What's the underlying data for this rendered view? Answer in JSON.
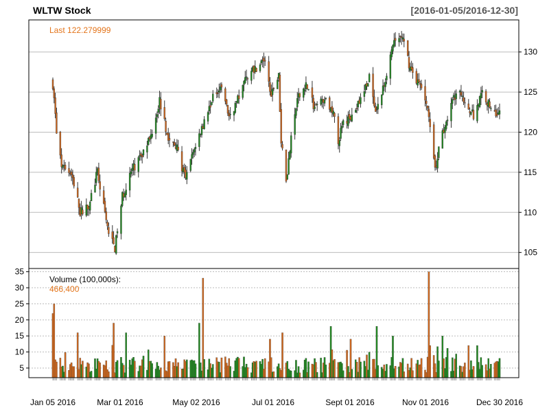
{
  "title": "WLTW Stock",
  "date_range": "[2016-01-05/2016-12-30]",
  "colors": {
    "up": "#228B22",
    "down": "#D2691E",
    "accent": "#E3741A",
    "grid": "#BBBBBB",
    "frame": "#000000"
  },
  "chart_data": [
    {
      "type": "candlestick",
      "title": "WLTW Stock",
      "annotation_label": "Last",
      "last_value": "122.279999",
      "ylim": [
        103,
        134
      ],
      "yticks": [
        105,
        110,
        115,
        120,
        125,
        130
      ],
      "ytick_labels": [
        "105",
        "110",
        "115",
        "120",
        "125",
        "130"
      ],
      "grid": true,
      "x_range": [
        "2016-01-05",
        "2016-12-30"
      ],
      "xtick_labels": [
        "Jan 05 2016",
        "Mar 01 2016",
        "May 02 2016",
        "Jul 01 2016",
        "Sept 01 2016",
        "Nov 01 2016",
        "Dec 30 2016"
      ],
      "close_path": [
        [
          "2016-01-05",
          126
        ],
        [
          "2016-01-08",
          120
        ],
        [
          "2016-01-12",
          115.5
        ],
        [
          "2016-01-20",
          115
        ],
        [
          "2016-01-27",
          110
        ],
        [
          "2016-02-03",
          111
        ],
        [
          "2016-02-10",
          115
        ],
        [
          "2016-02-18",
          108
        ],
        [
          "2016-02-24",
          105.5
        ],
        [
          "2016-03-01",
          112
        ],
        [
          "2016-03-08",
          115
        ],
        [
          "2016-03-16",
          117
        ],
        [
          "2016-03-23",
          119
        ],
        [
          "2016-03-31",
          124
        ],
        [
          "2016-04-07",
          119
        ],
        [
          "2016-04-14",
          118
        ],
        [
          "2016-04-21",
          114
        ],
        [
          "2016-04-28",
          118
        ],
        [
          "2016-05-05",
          121
        ],
        [
          "2016-05-12",
          124
        ],
        [
          "2016-05-19",
          126
        ],
        [
          "2016-05-26",
          122
        ],
        [
          "2016-06-02",
          124
        ],
        [
          "2016-06-09",
          127
        ],
        [
          "2016-06-16",
          128
        ],
        [
          "2016-06-23",
          129
        ],
        [
          "2016-06-29",
          125
        ],
        [
          "2016-07-05",
          127
        ],
        [
          "2016-07-07",
          119
        ],
        [
          "2016-07-11",
          114
        ],
        [
          "2016-07-15",
          119
        ],
        [
          "2016-07-20",
          124
        ],
        [
          "2016-07-27",
          126
        ],
        [
          "2016-08-03",
          123
        ],
        [
          "2016-08-10",
          124
        ],
        [
          "2016-08-17",
          123
        ],
        [
          "2016-08-22",
          119
        ],
        [
          "2016-08-26",
          121
        ],
        [
          "2016-09-02",
          122
        ],
        [
          "2016-09-09",
          124
        ],
        [
          "2016-09-16",
          127
        ],
        [
          "2016-09-21",
          122
        ],
        [
          "2016-09-28",
          126
        ],
        [
          "2016-10-05",
          131
        ],
        [
          "2016-10-12",
          132
        ],
        [
          "2016-10-19",
          128
        ],
        [
          "2016-10-26",
          126
        ],
        [
          "2016-11-01",
          124
        ],
        [
          "2016-11-04",
          121
        ],
        [
          "2016-11-08",
          115
        ],
        [
          "2016-11-11",
          118
        ],
        [
          "2016-11-18",
          122
        ],
        [
          "2016-11-25",
          125
        ],
        [
          "2016-12-02",
          124
        ],
        [
          "2016-12-09",
          122
        ],
        [
          "2016-12-16",
          125
        ],
        [
          "2016-12-23",
          123
        ],
        [
          "2016-12-30",
          122.28
        ]
      ]
    },
    {
      "type": "bar",
      "title": "Volume (100,000s):",
      "last_value": "466,400",
      "ylim": [
        2,
        36
      ],
      "yticks": [
        5,
        10,
        15,
        20,
        25,
        30,
        35
      ],
      "ytick_labels": [
        "5",
        "10",
        "15",
        "20",
        "25",
        "30",
        "35"
      ],
      "grid": true,
      "spikes": [
        [
          "2016-01-05",
          22
        ],
        [
          "2016-01-06",
          25
        ],
        [
          "2016-01-25",
          16
        ],
        [
          "2016-02-23",
          19
        ],
        [
          "2016-03-04",
          16
        ],
        [
          "2016-04-04",
          15
        ],
        [
          "2016-05-02",
          19
        ],
        [
          "2016-05-05",
          33
        ],
        [
          "2016-06-28",
          14
        ],
        [
          "2016-07-08",
          16
        ],
        [
          "2016-08-16",
          18
        ],
        [
          "2016-09-01",
          14
        ],
        [
          "2016-09-22",
          18
        ],
        [
          "2016-10-05",
          15
        ],
        [
          "2016-11-03",
          35
        ],
        [
          "2016-11-04",
          12
        ],
        [
          "2016-11-14",
          15
        ],
        [
          "2016-12-05",
          12
        ],
        [
          "2016-12-12",
          12
        ]
      ]
    }
  ]
}
